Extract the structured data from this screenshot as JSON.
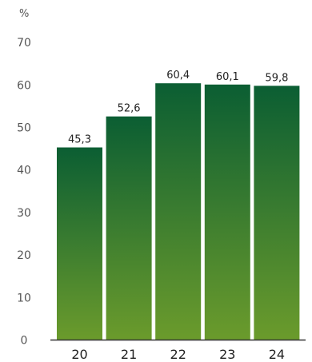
{
  "chart_data": {
    "type": "bar",
    "unit_label": "%",
    "categories": [
      "20",
      "21",
      "22",
      "23",
      "24"
    ],
    "values": [
      45.3,
      52.6,
      60.4,
      60.1,
      59.8
    ],
    "value_labels": [
      "45,3",
      "52,6",
      "60,4",
      "60,1",
      "59,8"
    ],
    "ylim": [
      0,
      70
    ],
    "yticks": [
      0,
      10,
      20,
      30,
      40,
      50,
      60,
      70
    ],
    "grid": false,
    "colors": {
      "bar_top": "#0b5e33",
      "bar_bottom": "#6b9b2c",
      "axis": "#333333"
    }
  }
}
